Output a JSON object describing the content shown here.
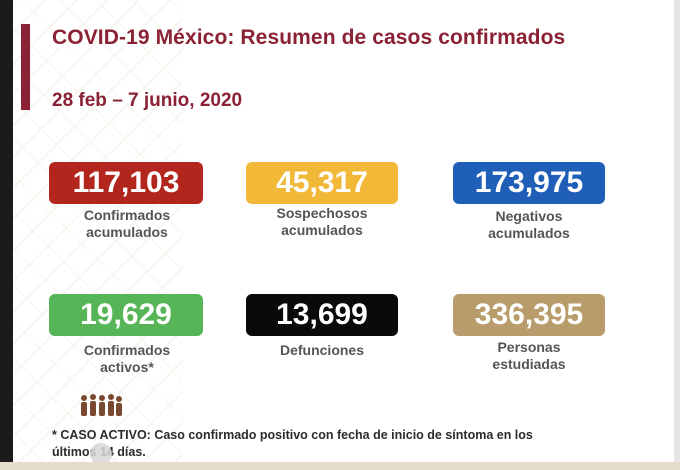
{
  "header": {
    "title": "COVID-19 México: Resumen de casos confirmados",
    "date_range": "28 feb – 7 junio, 2020"
  },
  "stats": [
    {
      "value": "117,103",
      "label_line1": "Confirmados",
      "label_line2": "acumulados",
      "color": "#b3261e"
    },
    {
      "value": "45,317",
      "label_line1": "Sospechosos",
      "label_line2": "acumulados",
      "color": "#f2b838"
    },
    {
      "value": "173,975",
      "label_line1": "Negativos",
      "label_line2": "acumulados",
      "color": "#1f5fb8"
    },
    {
      "value": "19,629",
      "label_line1": "Confirmados",
      "label_line2": "activos*",
      "color": "#56b557"
    },
    {
      "value": "13,699",
      "label_line1": "Defunciones",
      "label_line2": "",
      "color": "#0a0a0a"
    },
    {
      "value": "336,395",
      "label_line1": "Personas",
      "label_line2": "estudiadas",
      "color": "#b89c6b"
    }
  ],
  "footnote": {
    "line1": "* CASO ACTIVO: Caso confirmado positivo con fecha de inicio de síntoma en los",
    "line2": "últimos 14 días."
  },
  "colors": {
    "title": "#8a2135",
    "label": "#555555",
    "accent": "#8a2135"
  }
}
